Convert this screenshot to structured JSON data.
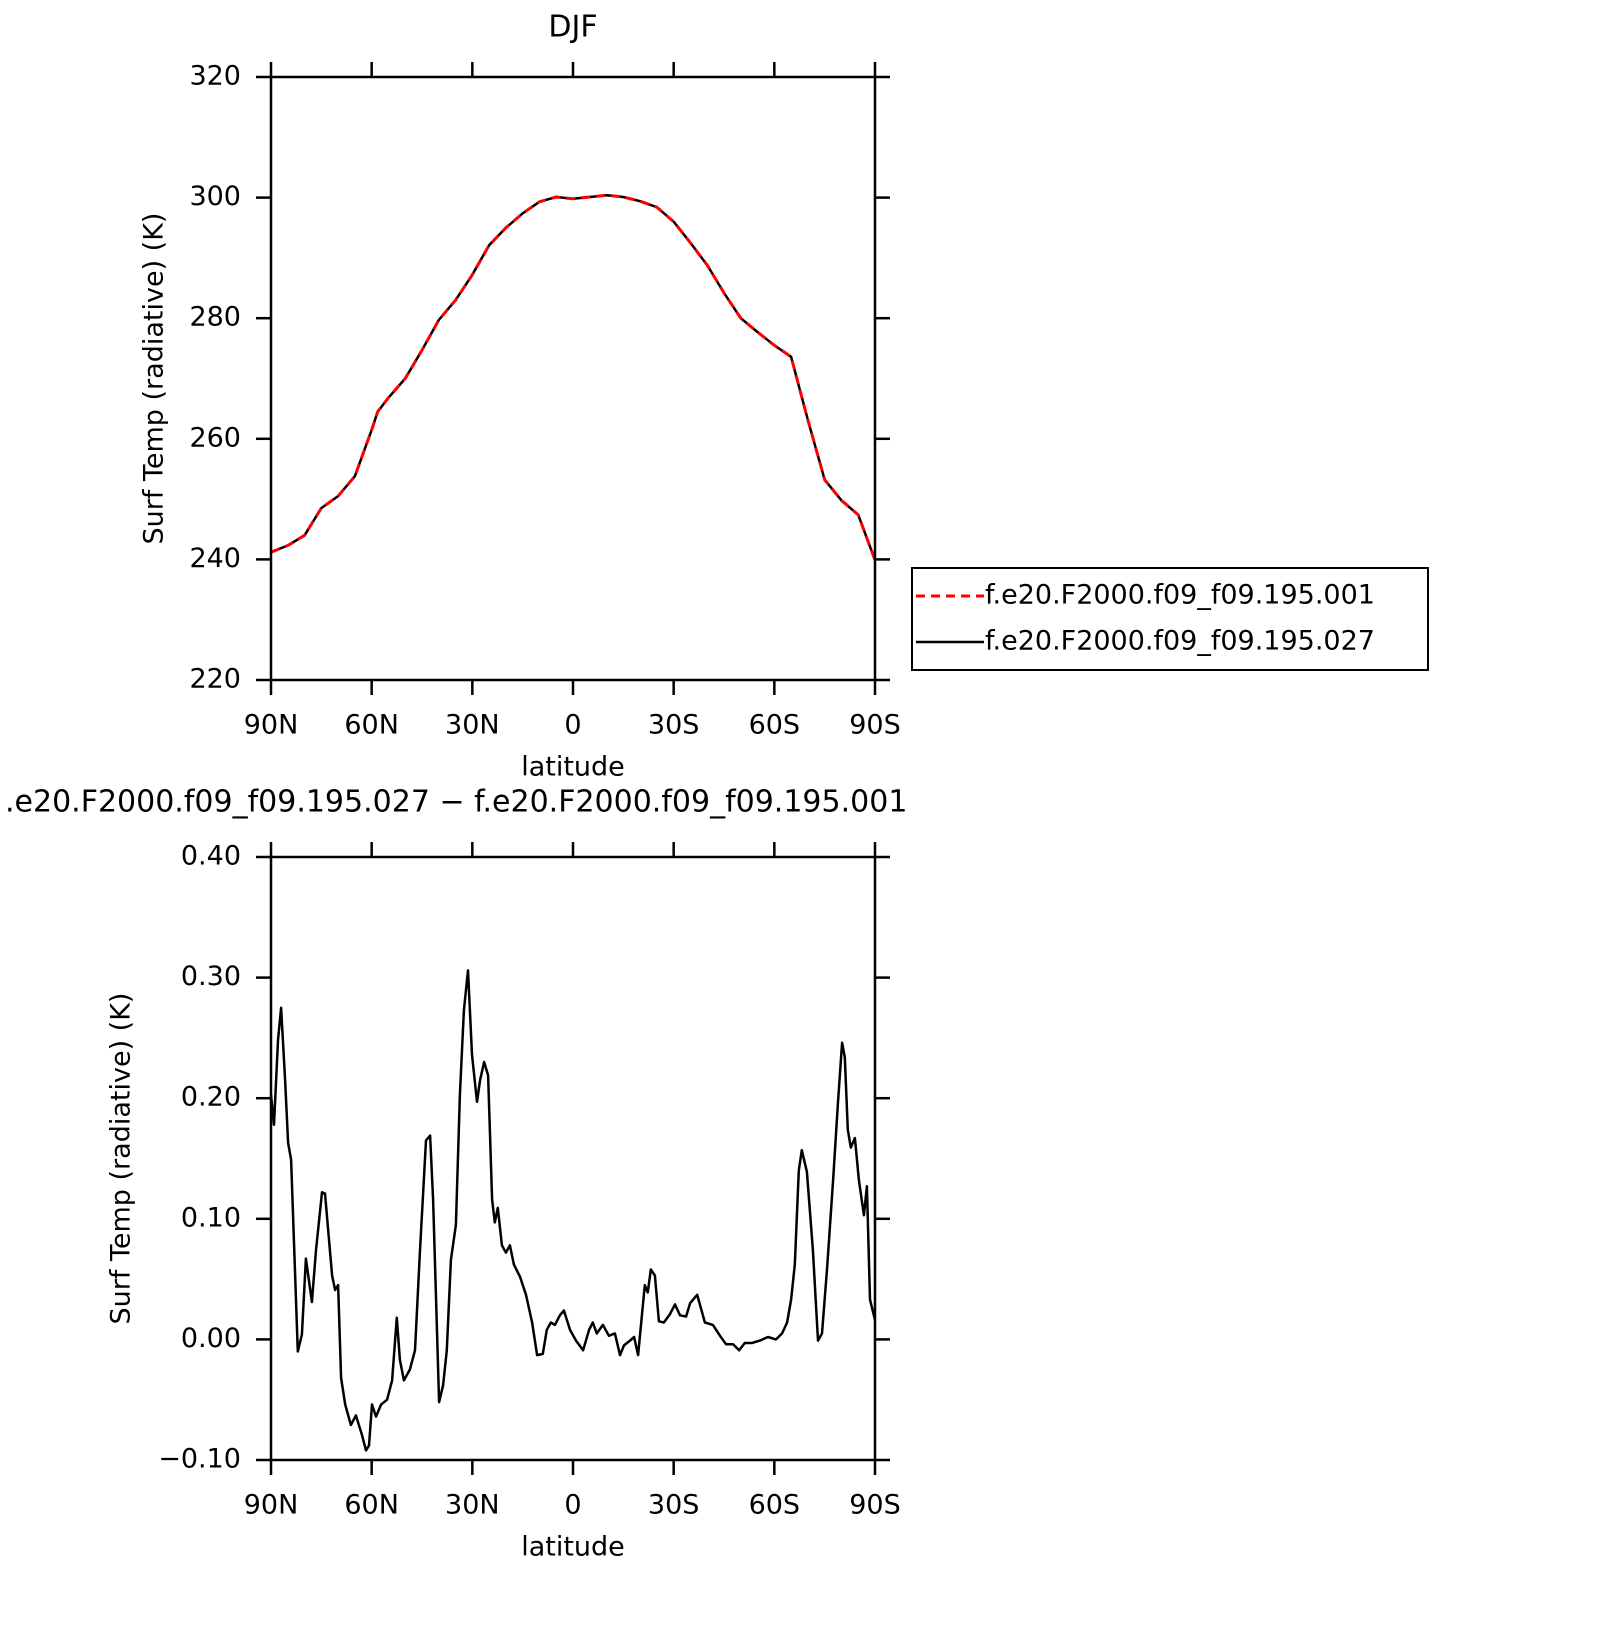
{
  "chart_data": [
    {
      "type": "line",
      "title": "DJF",
      "x_label": "latitude",
      "y_label": "Surf Temp (radiative) (K)",
      "x": [
        90,
        85,
        80,
        75,
        70,
        65,
        60,
        58.2,
        55,
        50,
        45,
        40,
        35,
        30,
        25,
        20,
        15,
        10,
        5,
        0,
        -5,
        -10,
        -15,
        -20,
        -25,
        -30,
        -35,
        -40,
        -45,
        -50,
        -55,
        -60,
        -65,
        -70,
        -75,
        -80,
        -85,
        -90
      ],
      "series": [
        {
          "name": "f.e20.F2000.f09_f09.195.001",
          "color": "#ff0000",
          "dashed": true,
          "values": [
            241.2,
            242.3,
            244.0,
            248.5,
            250.5,
            253.8,
            261.5,
            264.5,
            266.8,
            270.0,
            274.7,
            279.7,
            283.0,
            287.2,
            292.1,
            295.0,
            297.4,
            299.3,
            300.1,
            299.8,
            300.1,
            300.4,
            300.1,
            299.4,
            298.4,
            296.0,
            292.5,
            288.8,
            284.2,
            280.0,
            277.7,
            275.5,
            273.6,
            263.1,
            253.2,
            249.8,
            247.4,
            239.9
          ]
        },
        {
          "name": "f.e20.F2000.f09_f09.195.027",
          "color": "#000000",
          "dashed": false,
          "values": [
            241.2,
            242.3,
            244.0,
            248.5,
            250.5,
            253.8,
            261.5,
            264.5,
            266.8,
            270.0,
            274.7,
            279.7,
            283.0,
            287.2,
            292.1,
            295.0,
            297.4,
            299.3,
            300.1,
            299.8,
            300.1,
            300.4,
            300.1,
            299.4,
            298.4,
            296.0,
            292.5,
            288.8,
            284.2,
            280.0,
            277.7,
            275.5,
            273.6,
            263.1,
            253.2,
            249.8,
            247.4,
            239.9
          ]
        }
      ],
      "xlim": [
        90,
        -90
      ],
      "xticks": [
        {
          "value": 90,
          "label": "90N"
        },
        {
          "value": 60,
          "label": "60N"
        },
        {
          "value": 30,
          "label": "30N"
        },
        0,
        {
          "value": -30,
          "label": "30S"
        },
        {
          "value": -60,
          "label": "60S"
        },
        {
          "value": -90,
          "label": "90S"
        }
      ],
      "ylim": [
        220,
        320
      ],
      "yticks": [
        220,
        240,
        260,
        280,
        300,
        320
      ],
      "legend": "right"
    },
    {
      "type": "line",
      "title": ".e20.F2000.f09_f09.195.027 − f.e20.F2000.f09_f09.195.001",
      "x_label": "latitude",
      "y_label": "Surf Temp (radiative) (K)",
      "x": [
        90,
        89.1,
        87.9,
        87.0,
        85.8,
        84.9,
        84.0,
        82.0,
        80.8,
        79.6,
        77.8,
        76.6,
        74.8,
        73.9,
        71.8,
        70.9,
        70.0,
        69.1,
        67.9,
        66.2,
        64.7,
        62.9,
        61.7,
        60.8,
        59.9,
        58.7,
        57.2,
        55.4,
        53.9,
        52.5,
        51.6,
        50.4,
        48.6,
        47.1,
        45.6,
        43.8,
        42.6,
        41.7,
        39.9,
        38.7,
        37.6,
        36.4,
        34.9,
        33.7,
        32.5,
        31.3,
        30.1,
        28.6,
        27.7,
        26.5,
        25.3,
        24.1,
        23.3,
        22.4,
        21.2,
        20.0,
        18.8,
        17.6,
        15.8,
        14.0,
        12.2,
        10.7,
        9.0,
        7.8,
        6.6,
        5.4,
        3.9,
        2.7,
        0.9,
        -0.9,
        -3.0,
        -4.8,
        -5.9,
        -7.1,
        -8.9,
        -10.7,
        -12.5,
        -14.0,
        -15.2,
        -17.0,
        -18.2,
        -19.4,
        -21.4,
        -22.3,
        -23.2,
        -24.4,
        -25.6,
        -27.1,
        -28.9,
        -30.4,
        -31.9,
        -33.7,
        -34.9,
        -37.0,
        -39.3,
        -41.7,
        -43.8,
        -45.6,
        -47.7,
        -49.5,
        -51.2,
        -53.3,
        -55.7,
        -58.1,
        -60.5,
        -62.3,
        -63.8,
        -65.0,
        -66.1,
        -67.3,
        -68.2,
        -69.7,
        -71.5,
        -73.0,
        -74.2,
        -75.7,
        -77.5,
        -79.0,
        -80.2,
        -81.0,
        -81.9,
        -82.8,
        -84.0,
        -85.2,
        -86.7,
        -87.6,
        -88.5,
        -90
      ],
      "series": [
        {
          "color": "#000000",
          "dashed": false,
          "values": [
            0.203,
            0.178,
            0.248,
            0.275,
            0.215,
            0.163,
            0.149,
            -0.01,
            0.004,
            0.067,
            0.031,
            0.074,
            0.122,
            0.121,
            0.053,
            0.041,
            0.045,
            -0.032,
            -0.054,
            -0.071,
            -0.063,
            -0.079,
            -0.092,
            -0.088,
            -0.054,
            -0.064,
            -0.054,
            -0.05,
            -0.034,
            0.018,
            -0.017,
            -0.034,
            -0.025,
            -0.009,
            0.074,
            0.165,
            0.169,
            0.116,
            -0.052,
            -0.038,
            -0.009,
            0.066,
            0.095,
            0.203,
            0.273,
            0.306,
            0.236,
            0.197,
            0.215,
            0.23,
            0.219,
            0.116,
            0.097,
            0.109,
            0.078,
            0.072,
            0.078,
            0.062,
            0.052,
            0.037,
            0.014,
            -0.013,
            -0.012,
            0.008,
            0.014,
            0.012,
            0.02,
            0.024,
            0.008,
            -0.001,
            -0.009,
            0.008,
            0.014,
            0.005,
            0.012,
            0.003,
            0.005,
            -0.013,
            -0.005,
            -0.001,
            0.002,
            -0.013,
            0.045,
            0.039,
            0.058,
            0.053,
            0.015,
            0.014,
            0.021,
            0.029,
            0.02,
            0.019,
            0.03,
            0.037,
            0.014,
            0.012,
            0.003,
            -0.004,
            -0.004,
            -0.009,
            -0.003,
            -0.003,
            -0.001,
            0.002,
            0.0,
            0.005,
            0.014,
            0.033,
            0.062,
            0.14,
            0.157,
            0.139,
            0.074,
            -0.001,
            0.005,
            0.058,
            0.132,
            0.198,
            0.246,
            0.234,
            0.174,
            0.159,
            0.167,
            0.132,
            0.103,
            0.127,
            0.033,
            0.016
          ]
        }
      ],
      "xlim": [
        90,
        -90
      ],
      "xticks": [
        {
          "value": 90,
          "label": "90N"
        },
        {
          "value": 60,
          "label": "60N"
        },
        {
          "value": 30,
          "label": "30N"
        },
        0,
        {
          "value": -30,
          "label": "30S"
        },
        {
          "value": -60,
          "label": "60S"
        },
        {
          "value": -90,
          "label": "90S"
        }
      ],
      "ylim": [
        -0.1,
        0.4
      ],
      "yticks": [
        {
          "value": -0.1,
          "label": "−0.10"
        },
        {
          "value": 0,
          "label": "0.00"
        },
        {
          "value": 0.1,
          "label": "0.10"
        },
        {
          "value": 0.2,
          "label": "0.20"
        },
        {
          "value": 0.3,
          "label": "0.30"
        },
        {
          "value": 0.4,
          "label": "0.40"
        }
      ]
    }
  ]
}
